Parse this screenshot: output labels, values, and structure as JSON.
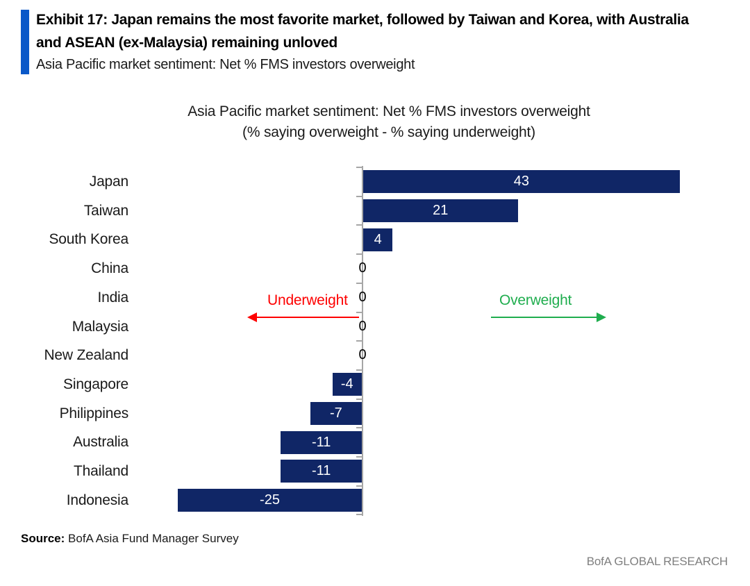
{
  "header": {
    "exhibit_title_line1": "Exhibit 17: Japan remains the most favorite market, followed by Taiwan and Korea, with Australia",
    "exhibit_title_line2": "and ASEAN (ex-Malaysia) remaining unloved",
    "subtitle": "Asia Pacific market sentiment: Net % FMS investors overweight",
    "accent_color": "#0a58c8"
  },
  "chart_data": {
    "type": "bar",
    "orientation": "horizontal",
    "title_line1": "Asia Pacific market sentiment: Net % FMS investors overweight",
    "title_line2": "(% saying overweight - % saying underweight)",
    "categories": [
      "Japan",
      "Taiwan",
      "South Korea",
      "China",
      "India",
      "Malaysia",
      "New Zealand",
      "Singapore",
      "Philippines",
      "Australia",
      "Thailand",
      "Indonesia"
    ],
    "values": [
      43,
      21,
      4,
      0,
      0,
      0,
      0,
      -4,
      -7,
      -11,
      -11,
      -25
    ],
    "xlim": [
      -31,
      49
    ],
    "grid": false,
    "legend": "none",
    "bar_color": "#102666",
    "axis_color": "#a6a6a6",
    "value_label_color_inside": "#ffffff",
    "zero_label_color": "#000000",
    "annotations": {
      "underweight": {
        "label": "Underweight",
        "color": "#fe0000",
        "direction": "left"
      },
      "overweight": {
        "label": "Overweight",
        "color": "#1fad4e",
        "direction": "right"
      }
    }
  },
  "footer": {
    "source_label": "Source:",
    "source_text": " BofA Asia Fund Manager Survey",
    "brand": "BofA GLOBAL RESEARCH"
  }
}
